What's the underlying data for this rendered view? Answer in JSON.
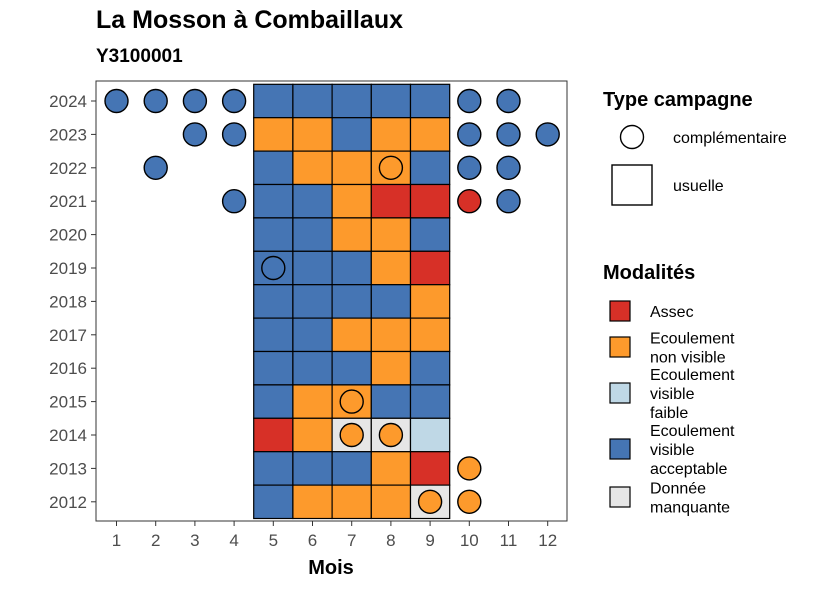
{
  "chart_data": {
    "type": "heatmap",
    "title": "La Mosson à Combaillaux",
    "subtitle": "Y3100001",
    "xlabel": "Mois",
    "ylabel": "",
    "x": [
      1,
      2,
      3,
      4,
      5,
      6,
      7,
      8,
      9,
      10,
      11,
      12
    ],
    "years": [
      2024,
      2023,
      2022,
      2021,
      2020,
      2019,
      2018,
      2017,
      2016,
      2015,
      2014,
      2013,
      2012
    ],
    "colors": {
      "Assec": "#d73027",
      "Ecoulement non visible": "#fd9a2c",
      "Ecoulement visible faible": "#bfd8e6",
      "Ecoulement visible acceptable": "#4575b4",
      "Donnée manquante": "#e6e6e6"
    },
    "legend_type": {
      "title": "Type campagne",
      "items": [
        {
          "label": "complémentaire",
          "shape": "circle"
        },
        {
          "label": "usuelle",
          "shape": "square"
        }
      ]
    },
    "legend_modalites": {
      "title": "Modalités",
      "items": [
        {
          "key": "Assec",
          "lines": [
            "Assec"
          ]
        },
        {
          "key": "Ecoulement non visible",
          "lines": [
            "Ecoulement",
            "non visible"
          ]
        },
        {
          "key": "Ecoulement visible faible",
          "lines": [
            "Ecoulement",
            "visible",
            "faible"
          ]
        },
        {
          "key": "Ecoulement visible acceptable",
          "lines": [
            "Ecoulement",
            "visible",
            "acceptable"
          ]
        },
        {
          "key": "Donnée manquante",
          "lines": [
            "Donnée",
            "manquante"
          ]
        }
      ]
    },
    "usuelle": [
      {
        "year": 2024,
        "months": [
          5,
          6,
          7,
          8,
          9
        ],
        "values": [
          "Ecoulement visible acceptable",
          "Ecoulement visible acceptable",
          "Ecoulement visible acceptable",
          "Ecoulement visible acceptable",
          "Ecoulement visible acceptable"
        ]
      },
      {
        "year": 2023,
        "months": [
          5,
          6,
          7,
          8,
          9
        ],
        "values": [
          "Ecoulement non visible",
          "Ecoulement non visible",
          "Ecoulement visible acceptable",
          "Ecoulement non visible",
          "Ecoulement non visible"
        ]
      },
      {
        "year": 2022,
        "months": [
          5,
          6,
          7,
          8,
          9
        ],
        "values": [
          "Ecoulement visible acceptable",
          "Ecoulement non visible",
          "Ecoulement non visible",
          "Ecoulement non visible",
          "Ecoulement visible acceptable"
        ]
      },
      {
        "year": 2021,
        "months": [
          5,
          6,
          7,
          8,
          9
        ],
        "values": [
          "Ecoulement visible acceptable",
          "Ecoulement visible acceptable",
          "Ecoulement non visible",
          "Assec",
          "Assec"
        ]
      },
      {
        "year": 2020,
        "months": [
          5,
          6,
          7,
          8,
          9
        ],
        "values": [
          "Ecoulement visible acceptable",
          "Ecoulement visible acceptable",
          "Ecoulement non visible",
          "Ecoulement non visible",
          "Ecoulement visible acceptable"
        ]
      },
      {
        "year": 2019,
        "months": [
          5,
          6,
          7,
          8,
          9
        ],
        "values": [
          "Ecoulement visible acceptable",
          "Ecoulement visible acceptable",
          "Ecoulement visible acceptable",
          "Ecoulement non visible",
          "Assec"
        ]
      },
      {
        "year": 2018,
        "months": [
          5,
          6,
          7,
          8,
          9
        ],
        "values": [
          "Ecoulement visible acceptable",
          "Ecoulement visible acceptable",
          "Ecoulement visible acceptable",
          "Ecoulement visible acceptable",
          "Ecoulement non visible"
        ]
      },
      {
        "year": 2017,
        "months": [
          5,
          6,
          7,
          8,
          9
        ],
        "values": [
          "Ecoulement visible acceptable",
          "Ecoulement visible acceptable",
          "Ecoulement non visible",
          "Ecoulement non visible",
          "Ecoulement non visible"
        ]
      },
      {
        "year": 2016,
        "months": [
          5,
          6,
          7,
          8,
          9
        ],
        "values": [
          "Ecoulement visible acceptable",
          "Ecoulement visible acceptable",
          "Ecoulement visible acceptable",
          "Ecoulement non visible",
          "Ecoulement visible acceptable"
        ]
      },
      {
        "year": 2015,
        "months": [
          5,
          6,
          7,
          8,
          9
        ],
        "values": [
          "Ecoulement visible acceptable",
          "Ecoulement non visible",
          "Ecoulement non visible",
          "Ecoulement visible acceptable",
          "Ecoulement visible acceptable"
        ]
      },
      {
        "year": 2014,
        "months": [
          5,
          6,
          7,
          8,
          9
        ],
        "values": [
          "Assec",
          "Ecoulement non visible",
          "Donnée manquante",
          "Donnée manquante",
          "Ecoulement visible faible"
        ]
      },
      {
        "year": 2013,
        "months": [
          5,
          6,
          7,
          8,
          9
        ],
        "values": [
          "Ecoulement visible acceptable",
          "Ecoulement visible acceptable",
          "Ecoulement visible acceptable",
          "Ecoulement non visible",
          "Assec"
        ]
      },
      {
        "year": 2012,
        "months": [
          5,
          6,
          7,
          8,
          9
        ],
        "values": [
          "Ecoulement visible acceptable",
          "Ecoulement non visible",
          "Ecoulement non visible",
          "Ecoulement non visible",
          "Donnée manquante"
        ]
      }
    ],
    "complementaire": [
      {
        "year": 2024,
        "month": 1,
        "value": "Ecoulement visible acceptable"
      },
      {
        "year": 2024,
        "month": 2,
        "value": "Ecoulement visible acceptable"
      },
      {
        "year": 2024,
        "month": 3,
        "value": "Ecoulement visible acceptable"
      },
      {
        "year": 2024,
        "month": 4,
        "value": "Ecoulement visible acceptable"
      },
      {
        "year": 2024,
        "month": 10,
        "value": "Ecoulement visible acceptable"
      },
      {
        "year": 2024,
        "month": 11,
        "value": "Ecoulement visible acceptable"
      },
      {
        "year": 2023,
        "month": 3,
        "value": "Ecoulement visible acceptable"
      },
      {
        "year": 2023,
        "month": 4,
        "value": "Ecoulement visible acceptable"
      },
      {
        "year": 2023,
        "month": 10,
        "value": "Ecoulement visible acceptable"
      },
      {
        "year": 2023,
        "month": 11,
        "value": "Ecoulement visible acceptable"
      },
      {
        "year": 2023,
        "month": 12,
        "value": "Ecoulement visible acceptable"
      },
      {
        "year": 2022,
        "month": 2,
        "value": "Ecoulement visible acceptable"
      },
      {
        "year": 2022,
        "month": 8,
        "value": "Ecoulement non visible"
      },
      {
        "year": 2022,
        "month": 10,
        "value": "Ecoulement visible acceptable"
      },
      {
        "year": 2022,
        "month": 11,
        "value": "Ecoulement visible acceptable"
      },
      {
        "year": 2021,
        "month": 4,
        "value": "Ecoulement visible acceptable"
      },
      {
        "year": 2021,
        "month": 10,
        "value": "Assec"
      },
      {
        "year": 2021,
        "month": 11,
        "value": "Ecoulement visible acceptable"
      },
      {
        "year": 2019,
        "month": 5,
        "value": "Ecoulement visible acceptable"
      },
      {
        "year": 2015,
        "month": 7,
        "value": "Ecoulement non visible"
      },
      {
        "year": 2014,
        "month": 7,
        "value": "Ecoulement non visible"
      },
      {
        "year": 2014,
        "month": 8,
        "value": "Ecoulement non visible"
      },
      {
        "year": 2013,
        "month": 10,
        "value": "Ecoulement non visible"
      },
      {
        "year": 2012,
        "month": 9,
        "value": "Ecoulement non visible"
      },
      {
        "year": 2012,
        "month": 10,
        "value": "Ecoulement non visible"
      }
    ]
  }
}
